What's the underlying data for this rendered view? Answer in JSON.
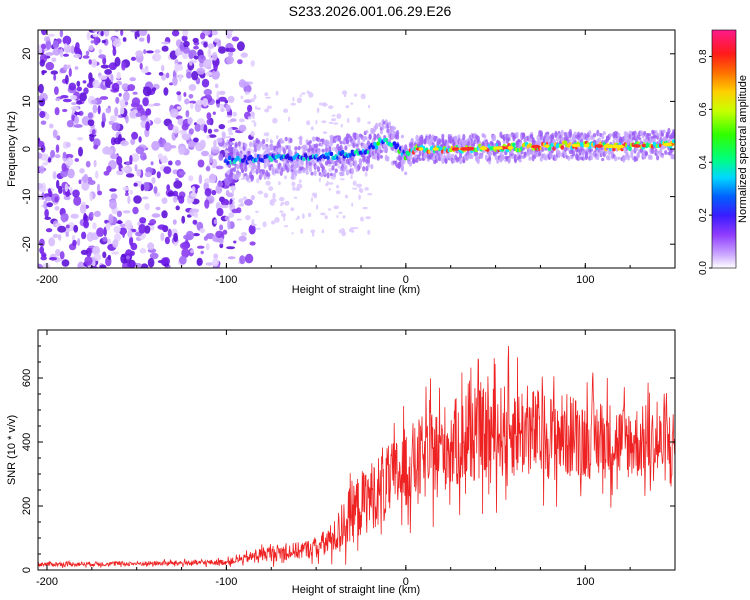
{
  "title": "S233.2026.001.06.29.E26",
  "chart_data": [
    {
      "type": "heatmap",
      "xlabel": "Height of straight line (km)",
      "ylabel": "Frequency (Hz)",
      "xlim": [
        -205,
        150
      ],
      "ylim": [
        -25,
        25
      ],
      "x_ticks": [
        -200,
        -100,
        0,
        100
      ],
      "x_tick_labels": [
        "-200",
        "-100",
        "0",
        "100"
      ],
      "y_ticks": [
        -20,
        -10,
        0,
        10,
        20
      ],
      "y_tick_labels": [
        "-20",
        "-10",
        "0",
        "10",
        "20"
      ],
      "ridge": {
        "x": [
          -100,
          -80,
          -60,
          -40,
          -30,
          -20,
          -12,
          -5,
          0,
          5,
          15,
          30,
          60,
          90,
          120,
          150
        ],
        "y": [
          -2.5,
          -2.0,
          -1.8,
          -1.5,
          -1.0,
          0.0,
          2.0,
          0.5,
          -1.5,
          0.0,
          0.0,
          0.0,
          0.3,
          0.8,
          0.5,
          1.0
        ]
      },
      "colorbar": {
        "label": "Normalized spectral amplitude",
        "range": [
          0.0,
          0.9
        ],
        "ticks": [
          0.0,
          0.2,
          0.4,
          0.6,
          0.8
        ],
        "tick_labels": [
          "0.0",
          "0.2",
          "0.4",
          "0.6",
          "0.8"
        ]
      }
    },
    {
      "type": "line",
      "xlabel": "Height of straight line (km)",
      "ylabel": "SNR (10 * v/v)",
      "xlim": [
        -205,
        150
      ],
      "ylim": [
        0,
        750
      ],
      "x_ticks": [
        -200,
        -100,
        0,
        100
      ],
      "x_tick_labels": [
        "-200",
        "-100",
        "0",
        "100"
      ],
      "y_ticks": [
        0,
        200,
        400,
        600
      ],
      "y_tick_labels": [
        "0",
        "200",
        "400",
        "600"
      ],
      "series": [
        {
          "name": "SNR",
          "color": "#ee2222",
          "envelope_x": [
            -205,
            -150,
            -120,
            -100,
            -90,
            -80,
            -70,
            -60,
            -50,
            -40,
            -30,
            -20,
            -10,
            0,
            10,
            20,
            30,
            40,
            50,
            60,
            70,
            80,
            90,
            100,
            110,
            120,
            130,
            140,
            150
          ],
          "envelope_mean": [
            18,
            20,
            22,
            25,
            35,
            50,
            55,
            60,
            70,
            100,
            180,
            230,
            270,
            320,
            350,
            380,
            400,
            420,
            430,
            440,
            430,
            420,
            420,
            410,
            410,
            400,
            400,
            390,
            390
          ],
          "envelope_spread": [
            8,
            8,
            9,
            10,
            15,
            25,
            30,
            30,
            35,
            60,
            110,
            120,
            130,
            140,
            150,
            150,
            160,
            160,
            160,
            170,
            160,
            150,
            150,
            140,
            140,
            130,
            130,
            130,
            130
          ]
        }
      ]
    }
  ]
}
